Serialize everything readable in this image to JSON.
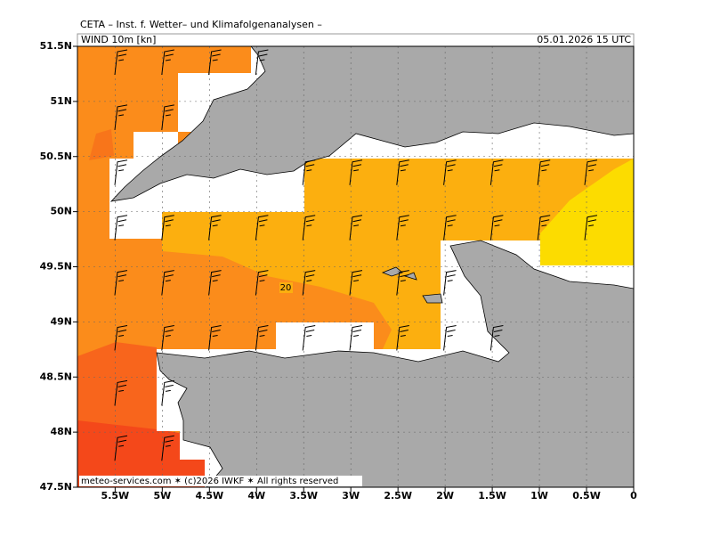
{
  "header": {
    "title": "CETA – Inst. f. Wetter– und Klimafolgenanalysen –",
    "variable": "WIND 10m [kn]",
    "valid_time": "05.01.2026 15 UTC"
  },
  "map": {
    "type": "map",
    "xlim": [
      -5.9,
      0
    ],
    "ylim": [
      47.5,
      51.5
    ],
    "xticks": [
      {
        "value": -5.5,
        "label": "5.5W"
      },
      {
        "value": -5,
        "label": "5W"
      },
      {
        "value": -4.5,
        "label": "4.5W"
      },
      {
        "value": -4,
        "label": "4W"
      },
      {
        "value": -3.5,
        "label": "3.5W"
      },
      {
        "value": -3,
        "label": "3W"
      },
      {
        "value": -2.5,
        "label": "2.5W"
      },
      {
        "value": -2,
        "label": "2W"
      },
      {
        "value": -1.5,
        "label": "1.5W"
      },
      {
        "value": -1,
        "label": "1W"
      },
      {
        "value": -0.5,
        "label": "0.5W"
      },
      0
    ],
    "yticks": [
      {
        "value": 47.5,
        "label": "47.5N"
      },
      {
        "value": 48,
        "label": "48N"
      },
      {
        "value": 48.5,
        "label": "48.5N"
      },
      {
        "value": 49,
        "label": "49N"
      },
      {
        "value": 49.5,
        "label": "49.5N"
      },
      {
        "value": 50,
        "label": "50N"
      },
      {
        "value": 50.5,
        "label": "50.5N"
      },
      {
        "value": 51,
        "label": "51N"
      },
      {
        "value": 51.5,
        "label": "51.5N"
      }
    ],
    "contour_label": "20"
  },
  "footer": "meteo-services.com ✶ (c)2026 IWKF ✶ All rights reserved"
}
